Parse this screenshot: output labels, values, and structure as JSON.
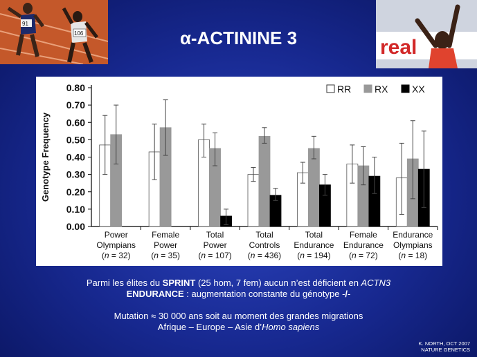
{
  "title": "α-ACTININE 3",
  "chart_data": {
    "type": "bar",
    "ylabel": "Genotype Frequency",
    "xlabel": "",
    "ylim": [
      0,
      0.8
    ],
    "yticks": [
      "0.00",
      "0.10",
      "0.20",
      "0.30",
      "0.40",
      "0.50",
      "0.60",
      "0.70",
      "0.80"
    ],
    "categories": [
      {
        "line1": "Power",
        "line2": "Olympians",
        "n": "32"
      },
      {
        "line1": "Female",
        "line2": "Power",
        "n": "35"
      },
      {
        "line1": "Total",
        "line2": "Power",
        "n": "107"
      },
      {
        "line1": "Total",
        "line2": "Controls",
        "n": "436"
      },
      {
        "line1": "Total",
        "line2": "Endurance",
        "n": "194"
      },
      {
        "line1": "Female",
        "line2": "Endurance",
        "n": "72"
      },
      {
        "line1": "Endurance",
        "line2": "Olympians",
        "n": "18"
      }
    ],
    "series": [
      {
        "name": "RR",
        "color": "#ffffff",
        "values": [
          0.47,
          0.43,
          0.5,
          0.3,
          0.31,
          0.36,
          0.28
        ],
        "err_low": [
          0.3,
          0.27,
          0.4,
          0.26,
          0.25,
          0.25,
          0.07
        ],
        "err_high": [
          0.64,
          0.59,
          0.59,
          0.34,
          0.37,
          0.47,
          0.48
        ]
      },
      {
        "name": "RX",
        "color": "#999999",
        "values": [
          0.53,
          0.57,
          0.45,
          0.52,
          0.45,
          0.35,
          0.39
        ],
        "err_low": [
          0.36,
          0.41,
          0.35,
          0.48,
          0.39,
          0.24,
          0.16
        ],
        "err_high": [
          0.7,
          0.73,
          0.54,
          0.57,
          0.52,
          0.46,
          0.61
        ]
      },
      {
        "name": "XX",
        "color": "#000000",
        "values": [
          0.0,
          0.0,
          0.06,
          0.18,
          0.24,
          0.29,
          0.33
        ],
        "err_low": [
          0.0,
          0.0,
          0.01,
          0.15,
          0.18,
          0.19,
          0.11
        ],
        "err_high": [
          0.0,
          0.0,
          0.1,
          0.22,
          0.3,
          0.4,
          0.55
        ]
      }
    ],
    "legend_position": "top-right",
    "grid": false
  },
  "caption": {
    "line1_a": "Parmi les élites du ",
    "line1_b": "SPRINT",
    "line1_c": " (25 hom, 7 fem) aucun n’est déficient en ",
    "line1_d": "ACTN3",
    "line2_a": "ENDURANCE",
    "line2_b": " : augmentation constante du génotype -",
    "line2_c": "/",
    "line2_d": "-",
    "line3": "Mutation ≈ 30 000 ans soit au moment des grandes migrations",
    "line4_a": "Afrique – Europe – Asie  d’",
    "line4_b": "Homo sapiens"
  },
  "credit": {
    "line1": "K. NORTH, OCT 2007",
    "line2": "NATURE GENETICS"
  },
  "photo_left": {
    "bib1": "91",
    "bib2": "106"
  },
  "photo_right": {
    "banner": "real"
  }
}
